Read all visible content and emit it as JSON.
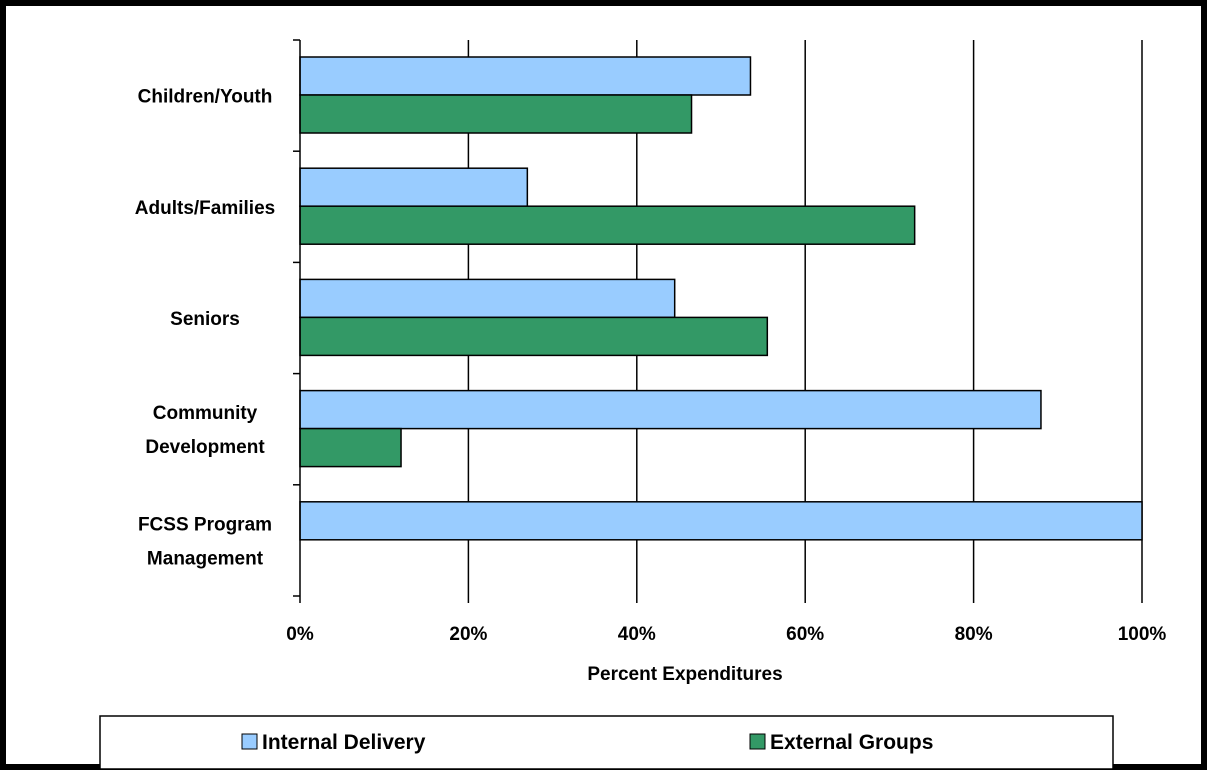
{
  "chart_data": {
    "type": "bar",
    "orientation": "horizontal",
    "categories": [
      [
        "Children/Youth"
      ],
      [
        "Adults/Families"
      ],
      [
        "Seniors"
      ],
      [
        "Community",
        "Development"
      ],
      [
        "FCSS Program",
        "Management"
      ]
    ],
    "series": [
      {
        "name": "Internal Delivery",
        "color": "#99ccff",
        "values": [
          53.5,
          27,
          44.5,
          88,
          100
        ]
      },
      {
        "name": "External Groups",
        "color": "#339966",
        "values": [
          46.5,
          73,
          55.5,
          12,
          0
        ]
      }
    ],
    "xlabel": "Percent Expenditures",
    "xlim": [
      0,
      100
    ],
    "xticks": [
      "0%",
      "20%",
      "40%",
      "60%",
      "80%",
      "100%"
    ],
    "grid": "vertical",
    "legend_position": "bottom"
  }
}
